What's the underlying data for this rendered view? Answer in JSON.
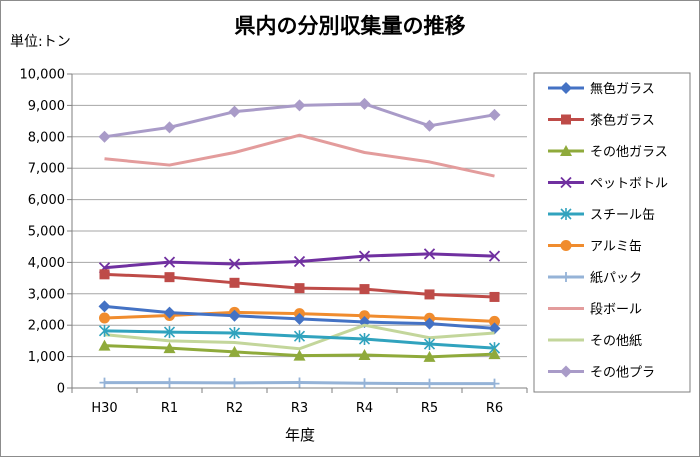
{
  "chart_data": {
    "type": "line",
    "title": "県内の分別収集量の推移",
    "unit_label": "単位:トン",
    "xlabel": "年度",
    "ylabel": "",
    "categories": [
      "H30",
      "R1",
      "R2",
      "R3",
      "R4",
      "R5",
      "R6"
    ],
    "ylim": [
      0,
      10000
    ],
    "yticks": [
      0,
      1000,
      2000,
      3000,
      4000,
      5000,
      6000,
      7000,
      8000,
      9000,
      10000
    ],
    "ytick_labels": [
      "0",
      "1,000",
      "2,000",
      "3,000",
      "4,000",
      "5,000",
      "6,000",
      "7,000",
      "8,000",
      "9,000",
      "10,000"
    ],
    "grid": true,
    "legend_position": "right",
    "series": [
      {
        "name": "無色ガラス",
        "color": "#4472c4",
        "marker": "diamond",
        "values": [
          2600,
          2400,
          2300,
          2200,
          2100,
          2050,
          1900
        ]
      },
      {
        "name": "茶色ガラス",
        "color": "#be4b48",
        "marker": "square",
        "values": [
          3620,
          3530,
          3350,
          3180,
          3150,
          2980,
          2900
        ]
      },
      {
        "name": "その他ガラス",
        "color": "#8faa3b",
        "marker": "triangle",
        "values": [
          1350,
          1270,
          1150,
          1030,
          1050,
          990,
          1080
        ]
      },
      {
        "name": "ペットボトル",
        "color": "#7030a0",
        "marker": "x",
        "values": [
          3830,
          4010,
          3950,
          4030,
          4200,
          4270,
          4200
        ]
      },
      {
        "name": "スチール缶",
        "color": "#31a3be",
        "marker": "star",
        "values": [
          1820,
          1780,
          1750,
          1650,
          1560,
          1400,
          1270
        ]
      },
      {
        "name": "アルミ缶",
        "color": "#f08c2e",
        "marker": "circle",
        "values": [
          2230,
          2310,
          2410,
          2370,
          2300,
          2220,
          2120
        ]
      },
      {
        "name": "紙パック",
        "color": "#95b3d7",
        "marker": "plus",
        "values": [
          170,
          170,
          165,
          175,
          150,
          140,
          140
        ]
      },
      {
        "name": "段ボール",
        "color": "#e39c9c",
        "marker": "none",
        "values": [
          7300,
          7100,
          7500,
          8050,
          7500,
          7200,
          6750
        ]
      },
      {
        "name": "その他紙",
        "color": "#c3d69b",
        "marker": "none",
        "values": [
          1700,
          1500,
          1450,
          1250,
          2000,
          1600,
          1750
        ]
      },
      {
        "name": "その他プラ",
        "color": "#a99bc8",
        "marker": "diamond",
        "values": [
          8000,
          8300,
          8800,
          9000,
          9050,
          8350,
          8700
        ]
      }
    ]
  }
}
